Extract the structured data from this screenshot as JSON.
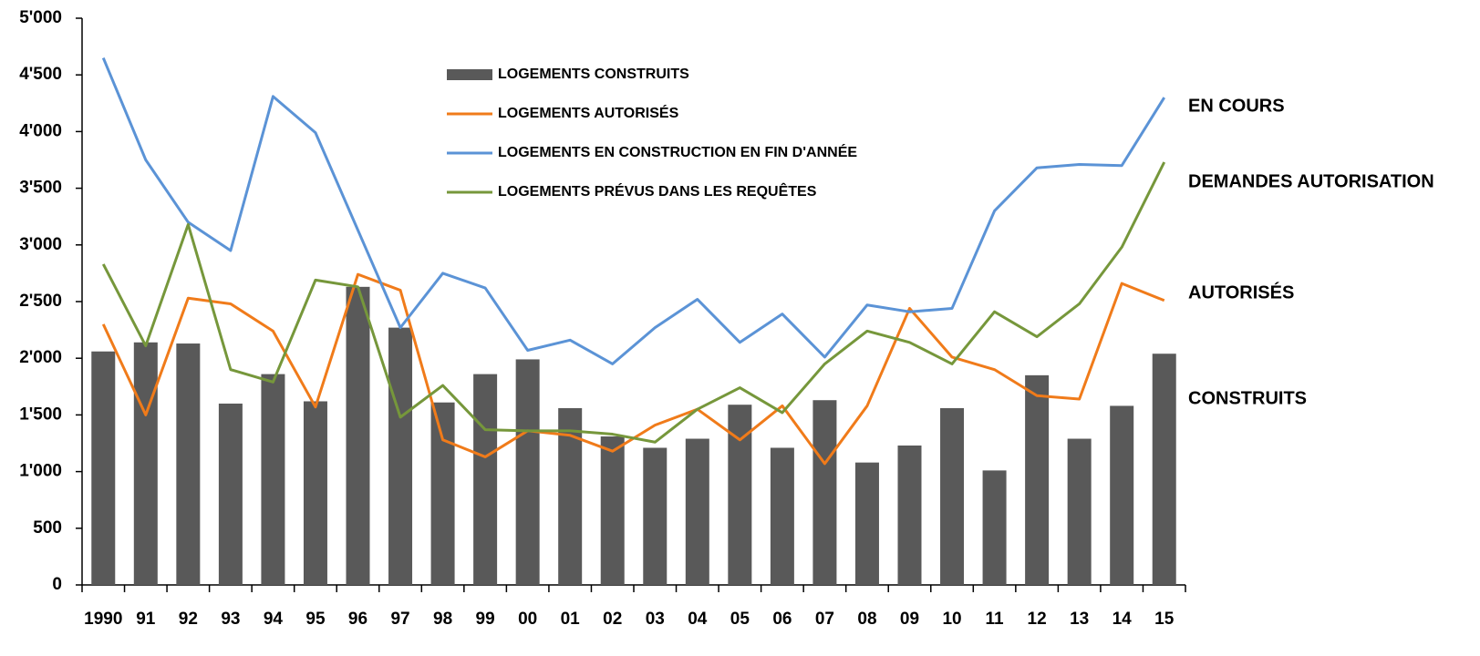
{
  "chart_data": {
    "type": "bar_line",
    "categories": [
      "1990",
      "91",
      "92",
      "93",
      "94",
      "95",
      "96",
      "97",
      "98",
      "99",
      "00",
      "01",
      "02",
      "03",
      "04",
      "05",
      "06",
      "07",
      "08",
      "09",
      "10",
      "11",
      "12",
      "13",
      "14",
      "15"
    ],
    "series": [
      {
        "name": "LOGEMENTS CONSTRUITS",
        "type": "bar",
        "color": "#595959",
        "values": [
          2060,
          2140,
          2130,
          1600,
          1860,
          1620,
          2630,
          2270,
          1610,
          1860,
          1990,
          1560,
          1310,
          1210,
          1290,
          1590,
          1210,
          1630,
          1080,
          1230,
          1560,
          1010,
          1850,
          1290,
          1580,
          2040
        ]
      },
      {
        "name": "LOGEMENTS AUTORISÉS",
        "type": "line",
        "color": "#f07b1a",
        "values": [
          2300,
          1500,
          2530,
          2480,
          2240,
          1570,
          2740,
          2600,
          1280,
          1130,
          1360,
          1320,
          1180,
          1410,
          1550,
          1280,
          1580,
          1070,
          1580,
          2440,
          2010,
          1900,
          1670,
          1640,
          2660,
          2510
        ]
      },
      {
        "name": "LOGEMENTS EN CONSTRUCTION EN FIN D'ANNÉE",
        "type": "line",
        "color": "#5b93d6",
        "values": [
          4650,
          3750,
          3200,
          2950,
          4310,
          3990,
          3130,
          2270,
          2750,
          2620,
          2070,
          2160,
          1950,
          2270,
          2520,
          2140,
          2390,
          2010,
          2470,
          2410,
          2440,
          3300,
          3680,
          3710,
          3700,
          4300
        ]
      },
      {
        "name": "LOGEMENTS PRÉVUS DANS LES REQUÊTES",
        "type": "line",
        "color": "#76973b",
        "values": [
          2830,
          2110,
          3180,
          1900,
          1790,
          2690,
          2630,
          1480,
          1760,
          1370,
          1360,
          1360,
          1330,
          1260,
          1550,
          1740,
          1520,
          1950,
          2240,
          2140,
          1950,
          2410,
          2190,
          2480,
          2980,
          3730
        ]
      }
    ],
    "annotations": [
      "EN COURS",
      "DEMANDES AUTORISATION",
      "AUTORISÉS",
      "CONSTRUITS"
    ],
    "ylim": [
      0,
      5000
    ],
    "yticks": [
      0,
      500,
      {
        "value": 1000,
        "label": "1'000"
      },
      {
        "value": 1500,
        "label": "1'500"
      },
      {
        "value": 2000,
        "label": "2'000"
      },
      {
        "value": 2500,
        "label": "2'500"
      },
      {
        "value": 3000,
        "label": "3'000"
      },
      {
        "value": 3500,
        "label": "3'500"
      },
      {
        "value": 4000,
        "label": "4'000"
      },
      {
        "value": 4500,
        "label": "4'500"
      },
      {
        "value": 5000,
        "label": "5'000"
      }
    ],
    "grid": false
  }
}
